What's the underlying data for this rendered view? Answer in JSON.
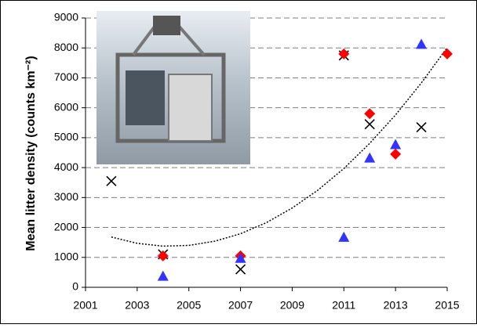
{
  "chart_data": {
    "type": "scatter",
    "ylabel": "Mean litter density (counts km⁻²)",
    "xlim": [
      2001,
      2015
    ],
    "xticks": [
      2001,
      2003,
      2005,
      2007,
      2009,
      2011,
      2013,
      2015
    ],
    "ylim": [
      0,
      9000
    ],
    "yticks": [
      0,
      1000,
      2000,
      3000,
      4000,
      5000,
      6000,
      7000,
      8000,
      9000
    ],
    "grid": true,
    "series": [
      {
        "marker": "x",
        "color": "#000000",
        "x": [
          2002,
          2004,
          2007,
          2011,
          2012,
          2014
        ],
        "values": [
          3550,
          1100,
          600,
          7750,
          5450,
          5350
        ]
      },
      {
        "marker": "diamond",
        "color": "#ff0000",
        "x": [
          2004,
          2007,
          2011,
          2012,
          2013,
          2015
        ],
        "values": [
          1050,
          1050,
          7800,
          5800,
          4450,
          7800
        ]
      },
      {
        "marker": "triangle",
        "color": "#3333ff",
        "x": [
          2004,
          2007,
          2011,
          2012,
          2013,
          2014
        ],
        "values": [
          350,
          950,
          1650,
          4300,
          4750,
          8100
        ]
      }
    ],
    "trendline": {
      "color": "#000000",
      "x": [
        2002,
        2003,
        2004,
        2005,
        2006,
        2007,
        2008,
        2009,
        2010,
        2011,
        2012,
        2013,
        2014,
        2015
      ],
      "values": [
        1680,
        1470,
        1375,
        1400,
        1540,
        1790,
        2160,
        2650,
        3250,
        3970,
        4810,
        5760,
        6830,
        8010
      ]
    }
  }
}
